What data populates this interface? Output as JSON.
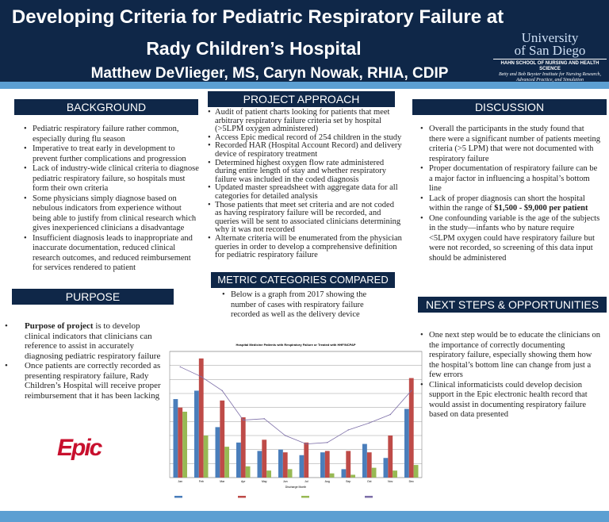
{
  "header": {
    "title_line1": "Developing Criteria for Pediatric Respiratory Failure at",
    "title_line2": "Rady Children’s Hospital",
    "authors": "Matthew DeVlieger, MS, Caryn Nowak, RHIA, CDIP"
  },
  "logo": {
    "university": "University",
    "name": "of San Diego",
    "school": "HAHN SCHOOL OF NURSING AND HEALTH SCIENCE",
    "institute": "Betty and Bob Beyster Institute for Nursing Research, Advanced Practice, and Simulation"
  },
  "background": {
    "title": "BACKGROUND",
    "bullets": [
      "Pediatric respiratory failure rather common, especially during flu season",
      "Imperative to treat early in development to prevent further complications and progression",
      "Lack of industry-wide clinical criteria to diagnose pediatric respiratory failure, so hospitals must form their own criteria",
      "Some physicians simply diagnose based on nebulous indicators from experience without being able to justify from clinical research which gives inexperienced clinicians a disadvantage",
      "Insufficient diagnosis leads to inappropriate and inaccurate documentation, reduced clinical research outcomes, and reduced reimbursement for services rendered to patient"
    ]
  },
  "purpose": {
    "title": "PURPOSE",
    "b1_bold": "Purpose of project",
    "b1_rest": " is to develop clinical indicators that clinicians can reference to assist in accurately diagnosing pediatric respiratory failure",
    "b2": "Once patients are correctly recorded as presenting respiratory failure, Rady Children’s Hospital will receive proper reimbursement that it has been lacking"
  },
  "epic_logo": "Epic",
  "approach": {
    "title": "PROJECT APPROACH",
    "bullets": [
      "Audit of patient charts looking for patients that meet arbitrary respiratory failure criteria set by hospital (>5LPM oxygen administered)",
      "Access Epic medical record of 254 children in the study",
      "Recorded HAR (Hospital Account Record) and delivery device of respiratory treatment",
      "Determined highest oxygen flow rate administered during entire length of stay and whether respiratory failure was included in the coded diagnosis",
      "Updated master spreadsheet with aggregate data for all categories for detailed analysis",
      "Those patients that meet set criteria and are not coded as having respiratory failure will be recorded, and queries will be sent to associated clinicians determining why it was not recorded",
      "Alternate criteria will be enumerated from the physician queries in order to develop a comprehensive definition for pediatric respiratory failure"
    ]
  },
  "metric": {
    "title": "METRIC CATEGORIES COMPARED",
    "bullet": "Below is a graph from 2017 showing the number of cases with respiratory failure recorded as well as the delivery device"
  },
  "discussion": {
    "title": "DISCUSSION",
    "b1": "Overall the participants in the study found that there were a significant number of patients meeting criteria (>5 LPM) that were not documented with respiratory failure",
    "b2": "Proper documentation of respiratory failure can be a major factor in influencing a hospital’s bottom line",
    "b3_pre": "Lack of proper diagnosis can short the hospital within the range of ",
    "b3_bold": "$1,500 - $9,000 per patient",
    "b4": "One confounding variable is the age of the subjects in the study—infants who by nature require <5LPM oxygen could have respiratory failure but were not recorded, so screening of this data input should be administered"
  },
  "next": {
    "title": "NEXT STEPS & OPPORTUNITIES",
    "bullets": [
      "One next step would be to educate the clinicians on the importance of correctly documenting respiratory failure, especially showing them how the hospital’s bottom line can change from just a few errors",
      "Clinical informaticists could develop decision support in the Epic electronic health record that would assist in documenting respiratory failure based on data presented"
    ]
  },
  "chart_data": {
    "type": "bar",
    "title": "Hospital Medicine Patients with Respiratory Failure or Treated with HHF/NCPAP",
    "xlabel": "Discharge Month",
    "categories": [
      "Jan",
      "Feb",
      "Mar",
      "Apr",
      "May",
      "Jun",
      "Jul",
      "Aug",
      "Sep",
      "Oct",
      "Nov",
      "Dec"
    ],
    "ylim": [
      0,
      90
    ],
    "grid": true,
    "legend": "bottom",
    "series": [
      {
        "type": "bar",
        "color": "#4a7ebb",
        "values": [
          56,
          62,
          36,
          25,
          19,
          20,
          16,
          18,
          6,
          24,
          14,
          49
        ]
      },
      {
        "type": "bar",
        "color": "#be4b48",
        "values": [
          50,
          85,
          55,
          43,
          27,
          18,
          25,
          19,
          19,
          18,
          30,
          71
        ]
      },
      {
        "type": "bar",
        "color": "#98b954",
        "values": [
          47,
          30,
          22,
          8,
          5,
          6,
          0,
          3,
          2,
          7,
          5,
          9
        ]
      },
      {
        "type": "line",
        "color": "#7d6fa8",
        "values": [
          79,
          72,
          62,
          41,
          42,
          30,
          24,
          25,
          34,
          39,
          45,
          62
        ]
      }
    ]
  }
}
